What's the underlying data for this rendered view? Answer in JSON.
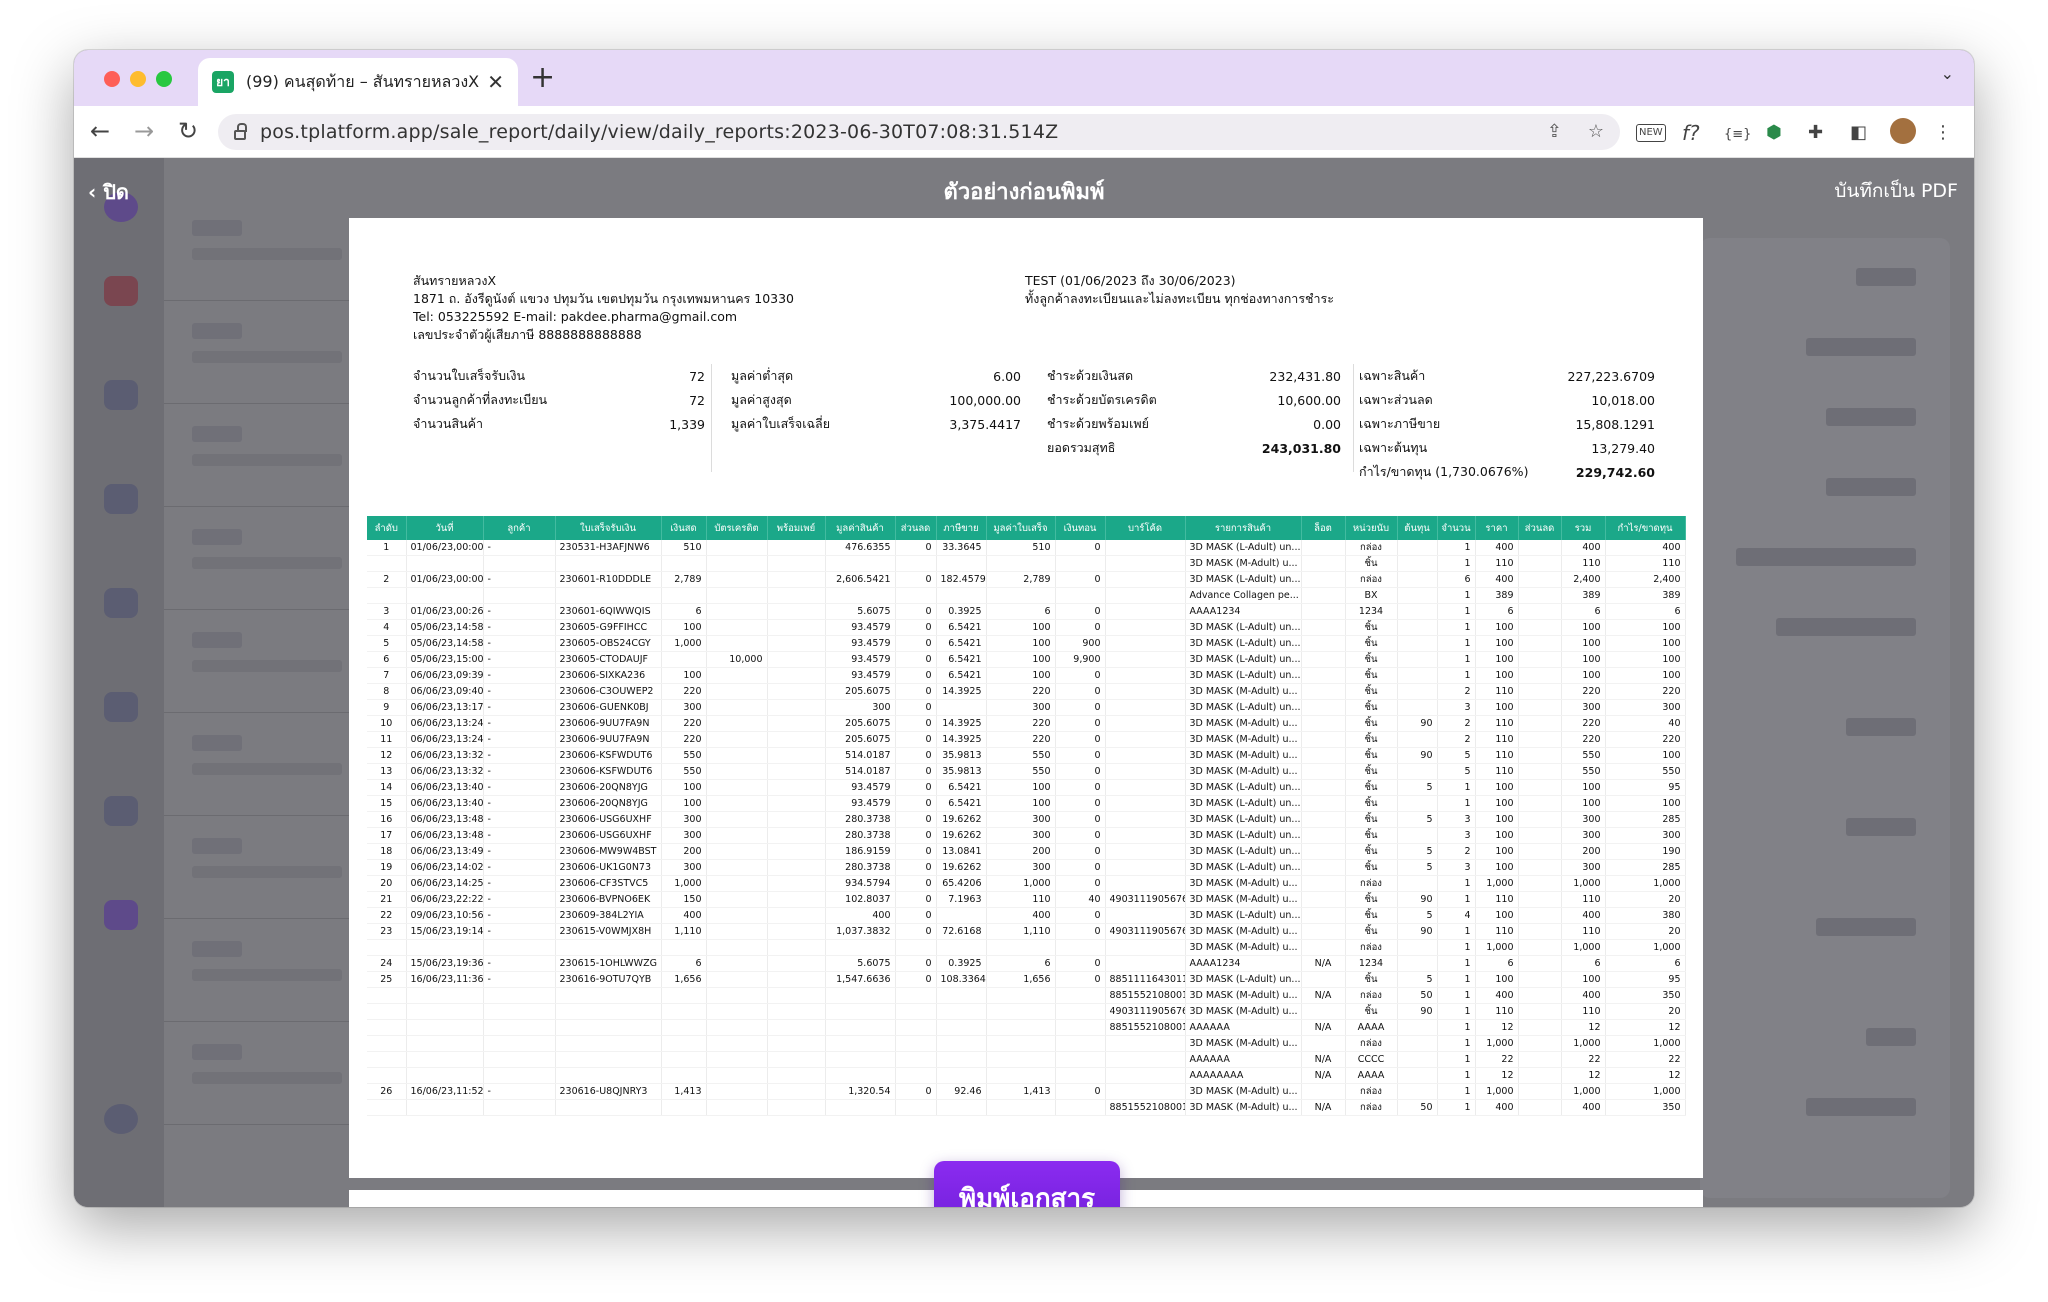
{
  "browser": {
    "tab_title": "(99) คนสุดท้าย – สันทรายหลวงX",
    "tab_favicon": "ยา",
    "url": "pos.tplatform.app/sale_report/daily/view/daily_reports:2023-06-30T07:08:31.514Z",
    "ext_new": "NEW",
    "ext_fx": "f?",
    "ext_braces": "{≡}"
  },
  "print_preview": {
    "close_label": "ปิด",
    "title": "ตัวอย่างก่อนพิมพ์",
    "save_pdf_label": "บันทึกเป็น PDF",
    "print_button": "พิมพ์เอกสาร"
  },
  "report": {
    "shop_name": "สันทรายหลวงX",
    "shop_address": "1871 ถ. อังรีดูนังต์ แขวง ปทุมวัน เขตปทุมวัน กรุงเทพมหานคร 10330",
    "shop_contact": "Tel: 053225592 E-mail: pakdee.pharma@gmail.com",
    "shop_tax": "เลขประจำตัวผู้เสียภาษี 8888888888888",
    "report_title": "TEST (01/06/2023 ถึง 30/06/2023)",
    "report_filter": "ทั้งลูกค้าลงทะเบียนและไม่ลงทะเบียน  ทุกช่องทางการชำระ",
    "summary1": [
      {
        "label": "จำนวนใบเสร็จรับเงิน",
        "value": "72"
      },
      {
        "label": "จำนวนลูกค้าที่ลงทะเบียน",
        "value": "72"
      },
      {
        "label": "จำนวนสินค้า",
        "value": "1,339"
      }
    ],
    "summary2": [
      {
        "label": "มูลค่าต่ำสุด",
        "value": "6.00"
      },
      {
        "label": "มูลค่าสูงสุด",
        "value": "100,000.00"
      },
      {
        "label": "มูลค่าใบเสร็จเฉลี่ย",
        "value": "3,375.4417"
      }
    ],
    "summary3": [
      {
        "label": "ชำระด้วยเงินสด",
        "value": "232,431.80"
      },
      {
        "label": "ชำระด้วยบัตรเครดิต",
        "value": "10,600.00"
      },
      {
        "label": "ชำระด้วยพร้อมเพย์",
        "value": "0.00"
      },
      {
        "label": "ยอดรวมสุทธิ",
        "value": "243,031.80"
      }
    ],
    "summary4": [
      {
        "label": "เฉพาะสินค้า",
        "value": "227,223.6709"
      },
      {
        "label": "เฉพาะส่วนลด",
        "value": "10,018.00"
      },
      {
        "label": "เฉพาะภาษีขาย",
        "value": "15,808.1291"
      },
      {
        "label": "เฉพาะต้นทุน",
        "value": "13,279.40"
      },
      {
        "label": "กำไร/ขาดทุน (1,730.0676%)",
        "value": "229,742.60"
      }
    ],
    "columns": [
      "ลำดับ",
      "วันที่",
      "ลูกค้า",
      "ใบเสร็จรับเงิน",
      "เงินสด",
      "บัตรเครดิต",
      "พร้อมเพย์",
      "มูลค่าสินค้า",
      "ส่วนลด",
      "ภาษีขาย",
      "มูลค่าใบเสร็จ",
      "เงินทอน",
      "บาร์โค้ด",
      "รายการสินค้า",
      "ล็อต",
      "หน่วยนับ",
      "ต้นทุน",
      "จำนวน",
      "ราคา",
      "ส่วนลด",
      "รวม",
      "กำไร/ขาดทุน"
    ],
    "rows": [
      [
        "1",
        "01/06/23,00:00",
        "-",
        "230531-H3AFJNW6",
        "510",
        "",
        "",
        "476.6355",
        "0",
        "33.3645",
        "510",
        "0",
        "",
        "3D MASK (L-Adult) un...",
        "",
        "กล่อง",
        "",
        "1",
        "400",
        "",
        "400",
        "400"
      ],
      [
        "",
        "",
        "",
        "",
        "",
        "",
        "",
        "",
        "",
        "",
        "",
        "",
        "",
        "3D MASK (M-Adult) u...",
        "",
        "ชิ้น",
        "",
        "1",
        "110",
        "",
        "110",
        "110"
      ],
      [
        "2",
        "01/06/23,00:00",
        "-",
        "230601-R10DDDLE",
        "2,789",
        "",
        "",
        "2,606.5421",
        "0",
        "182.4579",
        "2,789",
        "0",
        "",
        "3D MASK (L-Adult) un...",
        "",
        "กล่อง",
        "",
        "6",
        "400",
        "",
        "2,400",
        "2,400"
      ],
      [
        "",
        "",
        "",
        "",
        "",
        "",
        "",
        "",
        "",
        "",
        "",
        "",
        "",
        "Advance Collagen pe...",
        "",
        "BX",
        "",
        "1",
        "389",
        "",
        "389",
        "389"
      ],
      [
        "3",
        "01/06/23,00:26",
        "-",
        "230601-6QIWWQIS",
        "6",
        "",
        "",
        "5.6075",
        "0",
        "0.3925",
        "6",
        "0",
        "",
        "AAAA1234",
        "",
        "1234",
        "",
        "1",
        "6",
        "",
        "6",
        "6"
      ],
      [
        "4",
        "05/06/23,14:58",
        "-",
        "230605-G9FFIHCC",
        "100",
        "",
        "",
        "93.4579",
        "0",
        "6.5421",
        "100",
        "0",
        "",
        "3D MASK (L-Adult) un...",
        "",
        "ชิ้น",
        "",
        "1",
        "100",
        "",
        "100",
        "100"
      ],
      [
        "5",
        "05/06/23,14:58",
        "-",
        "230605-OBS24CGY",
        "1,000",
        "",
        "",
        "93.4579",
        "0",
        "6.5421",
        "100",
        "900",
        "",
        "3D MASK (L-Adult) un...",
        "",
        "ชิ้น",
        "",
        "1",
        "100",
        "",
        "100",
        "100"
      ],
      [
        "6",
        "05/06/23,15:00",
        "-",
        "230605-CTODAUJF",
        "",
        "10,000",
        "",
        "93.4579",
        "0",
        "6.5421",
        "100",
        "9,900",
        "",
        "3D MASK (L-Adult) un...",
        "",
        "ชิ้น",
        "",
        "1",
        "100",
        "",
        "100",
        "100"
      ],
      [
        "7",
        "06/06/23,09:39",
        "-",
        "230606-SIXKA236",
        "100",
        "",
        "",
        "93.4579",
        "0",
        "6.5421",
        "100",
        "0",
        "",
        "3D MASK (L-Adult) un...",
        "",
        "ชิ้น",
        "",
        "1",
        "100",
        "",
        "100",
        "100"
      ],
      [
        "8",
        "06/06/23,09:40",
        "-",
        "230606-C3OUWEP2",
        "220",
        "",
        "",
        "205.6075",
        "0",
        "14.3925",
        "220",
        "0",
        "",
        "3D MASK (M-Adult) u...",
        "",
        "ชิ้น",
        "",
        "2",
        "110",
        "",
        "220",
        "220"
      ],
      [
        "9",
        "06/06/23,13:17",
        "-",
        "230606-GUENK0BJ",
        "300",
        "",
        "",
        "300",
        "0",
        "",
        "300",
        "0",
        "",
        "3D MASK (L-Adult) un...",
        "",
        "ชิ้น",
        "",
        "3",
        "100",
        "",
        "300",
        "300"
      ],
      [
        "10",
        "06/06/23,13:24",
        "-",
        "230606-9UU7FA9N",
        "220",
        "",
        "",
        "205.6075",
        "0",
        "14.3925",
        "220",
        "0",
        "",
        "3D MASK (M-Adult) u...",
        "",
        "ชิ้น",
        "90",
        "2",
        "110",
        "",
        "220",
        "40"
      ],
      [
        "11",
        "06/06/23,13:24",
        "-",
        "230606-9UU7FA9N",
        "220",
        "",
        "",
        "205.6075",
        "0",
        "14.3925",
        "220",
        "0",
        "",
        "3D MASK (M-Adult) u...",
        "",
        "ชิ้น",
        "",
        "2",
        "110",
        "",
        "220",
        "220"
      ],
      [
        "12",
        "06/06/23,13:32",
        "-",
        "230606-KSFWDUT6",
        "550",
        "",
        "",
        "514.0187",
        "0",
        "35.9813",
        "550",
        "0",
        "",
        "3D MASK (M-Adult) u...",
        "",
        "ชิ้น",
        "90",
        "5",
        "110",
        "",
        "550",
        "100"
      ],
      [
        "13",
        "06/06/23,13:32",
        "-",
        "230606-KSFWDUT6",
        "550",
        "",
        "",
        "514.0187",
        "0",
        "35.9813",
        "550",
        "0",
        "",
        "3D MASK (M-Adult) u...",
        "",
        "ชิ้น",
        "",
        "5",
        "110",
        "",
        "550",
        "550"
      ],
      [
        "14",
        "06/06/23,13:40",
        "-",
        "230606-20QN8YJG",
        "100",
        "",
        "",
        "93.4579",
        "0",
        "6.5421",
        "100",
        "0",
        "",
        "3D MASK (L-Adult) un...",
        "",
        "ชิ้น",
        "5",
        "1",
        "100",
        "",
        "100",
        "95"
      ],
      [
        "15",
        "06/06/23,13:40",
        "-",
        "230606-20QN8YJG",
        "100",
        "",
        "",
        "93.4579",
        "0",
        "6.5421",
        "100",
        "0",
        "",
        "3D MASK (L-Adult) un...",
        "",
        "ชิ้น",
        "",
        "1",
        "100",
        "",
        "100",
        "100"
      ],
      [
        "16",
        "06/06/23,13:48",
        "-",
        "230606-USG6UXHF",
        "300",
        "",
        "",
        "280.3738",
        "0",
        "19.6262",
        "300",
        "0",
        "",
        "3D MASK (L-Adult) un...",
        "",
        "ชิ้น",
        "5",
        "3",
        "100",
        "",
        "300",
        "285"
      ],
      [
        "17",
        "06/06/23,13:48",
        "-",
        "230606-USG6UXHF",
        "300",
        "",
        "",
        "280.3738",
        "0",
        "19.6262",
        "300",
        "0",
        "",
        "3D MASK (L-Adult) un...",
        "",
        "ชิ้น",
        "",
        "3",
        "100",
        "",
        "300",
        "300"
      ],
      [
        "18",
        "06/06/23,13:49",
        "-",
        "230606-MW9W4BST",
        "200",
        "",
        "",
        "186.9159",
        "0",
        "13.0841",
        "200",
        "0",
        "",
        "3D MASK (L-Adult) un...",
        "",
        "ชิ้น",
        "5",
        "2",
        "100",
        "",
        "200",
        "190"
      ],
      [
        "19",
        "06/06/23,14:02",
        "-",
        "230606-UK1G0N73",
        "300",
        "",
        "",
        "280.3738",
        "0",
        "19.6262",
        "300",
        "0",
        "",
        "3D MASK (L-Adult) un...",
        "",
        "ชิ้น",
        "5",
        "3",
        "100",
        "",
        "300",
        "285"
      ],
      [
        "20",
        "06/06/23,14:25",
        "-",
        "230606-CF3STVC5",
        "1,000",
        "",
        "",
        "934.5794",
        "0",
        "65.4206",
        "1,000",
        "0",
        "",
        "3D MASK (M-Adult) u...",
        "",
        "กล่อง",
        "",
        "1",
        "1,000",
        "",
        "1,000",
        "1,000"
      ],
      [
        "21",
        "06/06/23,22:22",
        "-",
        "230606-BVPNO6EK",
        "150",
        "",
        "",
        "102.8037",
        "0",
        "7.1963",
        "110",
        "40",
        "4903111905676",
        "3D MASK (M-Adult) u...",
        "",
        "ชิ้น",
        "90",
        "1",
        "110",
        "",
        "110",
        "20"
      ],
      [
        "22",
        "09/06/23,10:56",
        "-",
        "230609-384L2YIA",
        "400",
        "",
        "",
        "400",
        "0",
        "",
        "400",
        "0",
        "",
        "3D MASK (L-Adult) un...",
        "",
        "ชิ้น",
        "5",
        "4",
        "100",
        "",
        "400",
        "380"
      ],
      [
        "23",
        "15/06/23,19:14",
        "-",
        "230615-V0WMJX8H",
        "1,110",
        "",
        "",
        "1,037.3832",
        "0",
        "72.6168",
        "1,110",
        "0",
        "4903111905676",
        "3D MASK (M-Adult) u...",
        "",
        "ชิ้น",
        "90",
        "1",
        "110",
        "",
        "110",
        "20"
      ],
      [
        "",
        "",
        "",
        "",
        "",
        "",
        "",
        "",
        "",
        "",
        "",
        "",
        "",
        "3D MASK (M-Adult) u...",
        "",
        "กล่อง",
        "",
        "1",
        "1,000",
        "",
        "1,000",
        "1,000"
      ],
      [
        "24",
        "15/06/23,19:36",
        "-",
        "230615-1OHLWWZG",
        "6",
        "",
        "",
        "5.6075",
        "0",
        "0.3925",
        "6",
        "0",
        "",
        "AAAA1234",
        "N/A",
        "1234",
        "",
        "1",
        "6",
        "",
        "6",
        "6"
      ],
      [
        "25",
        "16/06/23,11:36",
        "-",
        "230616-9OTU7QYB",
        "1,656",
        "",
        "",
        "1,547.6636",
        "0",
        "108.3364",
        "1,656",
        "0",
        "8851111643011",
        "3D MASK (L-Adult) un...",
        "",
        "ชิ้น",
        "5",
        "1",
        "100",
        "",
        "100",
        "95"
      ],
      [
        "",
        "",
        "",
        "",
        "",
        "",
        "",
        "",
        "",
        "",
        "",
        "",
        "8851552108001",
        "3D MASK (M-Adult) u...",
        "N/A",
        "กล่อง",
        "50",
        "1",
        "400",
        "",
        "400",
        "350"
      ],
      [
        "",
        "",
        "",
        "",
        "",
        "",
        "",
        "",
        "",
        "",
        "",
        "",
        "4903111905676",
        "3D MASK (M-Adult) u...",
        "",
        "ชิ้น",
        "90",
        "1",
        "110",
        "",
        "110",
        "20"
      ],
      [
        "",
        "",
        "",
        "",
        "",
        "",
        "",
        "",
        "",
        "",
        "",
        "",
        "8851552108001",
        "AAAAAA",
        "N/A",
        "AAAA",
        "",
        "1",
        "12",
        "",
        "12",
        "12"
      ],
      [
        "",
        "",
        "",
        "",
        "",
        "",
        "",
        "",
        "",
        "",
        "",
        "",
        "",
        "3D MASK (M-Adult) u...",
        "",
        "กล่อง",
        "",
        "1",
        "1,000",
        "",
        "1,000",
        "1,000"
      ],
      [
        "",
        "",
        "",
        "",
        "",
        "",
        "",
        "",
        "",
        "",
        "",
        "",
        "",
        "AAAAAA",
        "N/A",
        "CCCC",
        "",
        "1",
        "22",
        "",
        "22",
        "22"
      ],
      [
        "",
        "",
        "",
        "",
        "",
        "",
        "",
        "",
        "",
        "",
        "",
        "",
        "",
        "AAAAAAAA",
        "N/A",
        "AAAA",
        "",
        "1",
        "12",
        "",
        "12",
        "12"
      ],
      [
        "26",
        "16/06/23,11:52",
        "-",
        "230616-U8QJNRY3",
        "1,413",
        "",
        "",
        "1,320.54",
        "0",
        "92.46",
        "1,413",
        "0",
        "",
        "3D MASK (M-Adult) u...",
        "",
        "กล่อง",
        "",
        "1",
        "1,000",
        "",
        "1,000",
        "1,000"
      ],
      [
        "",
        "",
        "",
        "",
        "",
        "",
        "",
        "",
        "",
        "",
        "",
        "",
        "8851552108001",
        "3D MASK (M-Adult) u...",
        "N/A",
        "กล่อง",
        "50",
        "1",
        "400",
        "",
        "400",
        "350"
      ]
    ]
  },
  "colors": {
    "tabbar": "#e6d9f7",
    "table_header": "#1ba889",
    "print_button": "#7a22e0"
  }
}
